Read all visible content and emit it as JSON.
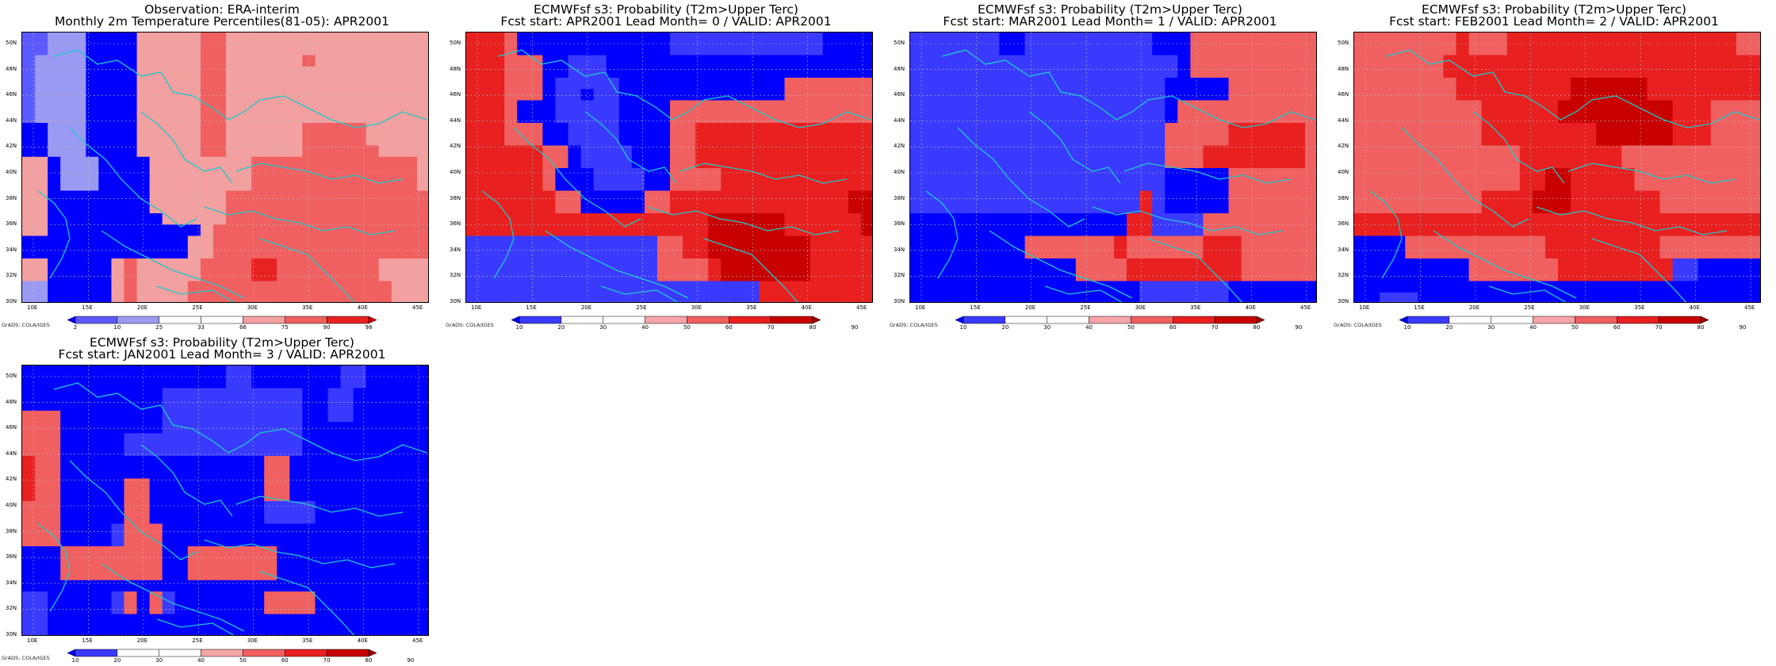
{
  "figure": {
    "grads_label": "GrADS: COLA/IGES",
    "lon_ticks": [
      "10E",
      "15E",
      "20E",
      "25E",
      "30E",
      "35E",
      "40E",
      "45E"
    ],
    "lat_ticks": [
      "50N",
      "48N",
      "46N",
      "44N",
      "42N",
      "40N",
      "38N",
      "36N",
      "34N",
      "32N",
      "30N"
    ]
  },
  "colors": {
    "percentile_scale": [
      "#0000ff",
      "#5a5aff",
      "#9a9af2",
      "#ffffff",
      "#ffffff",
      "#f2a0a0",
      "#f06060",
      "#e82222",
      "#d00000"
    ],
    "probability_scale": [
      "#0000ff",
      "#3a3aff",
      "#ffffff",
      "#ffffff",
      "#f5a5a5",
      "#f06060",
      "#e82020",
      "#c80000",
      "#a00000"
    ],
    "coast": "#20c8c8"
  },
  "panels": [
    {
      "id": "obs",
      "title_line1": "Observation: ERA-interim",
      "title_line2": "Monthly 2m Temperature Percentiles(81-05): APR2001",
      "cbar_labels": [
        "2",
        "10",
        "25",
        "33",
        "66",
        "75",
        "90",
        "98"
      ],
      "scale": "percentile",
      "grid": [
        "11222000055555665555555555555555",
        "11222000055555665555555555555555",
        "12222000055555665555556555555555",
        "12222000055555665555555555555555",
        "12222000055555665555555555555555",
        "12222000055555665555555555555555",
        "12222000055555665555555555555555",
        "12222000055555665555555555555555",
        "00222000055555665555556666655555",
        "00222000055555665555556666655555",
        "00222000055555665555556666665555",
        "55022200005555555566666666666665",
        "55022200005555555566666666666665",
        "55022200005555555566666666666665",
        "55000000005555556666666666666666",
        "55000000005555556666666666666666",
        "55000000000555556666666666666666",
        "55000000000000566666666666666666",
        "00000000000005566666666666666666",
        "00000000000005566666666666666666",
        "55000005655555666677666666665555",
        "55000005655555666677666666665555",
        "22000005655556666666666666666555",
        "22000005655556666666666666666555"
      ]
    },
    {
      "id": "lead0",
      "title_line1": "ECMWFsf s3: Probability (T2m>Upper Terc)",
      "title_line2": "Fcst start: APR2001   Lead Month= 0 / VALID: APR2001",
      "cbar_labels": [
        "10",
        "20",
        "30",
        "40",
        "50",
        "60",
        "70",
        "80",
        "90"
      ],
      "scale": "probability",
      "grid": [
        "66650000000000001111111111110000",
        "66650000000000001111111111110000",
        "66655500111000000000000000000000",
        "66655500111000000000000000000000",
        "66655501111100000000000005555555",
        "66655501101100000000000005555555",
        "66650001111100005555555555555555",
        "66650001111100005555555555555555",
        "66655500111100005566666666666666",
        "66655500111100005566666666666666",
        "66666655011110005566666666666666",
        "66666655011110005566666666666666",
        "66666650001111005555666666666666",
        "66666650001111005555666666666666",
        "66666665500000556666666666666677",
        "66666665500000556666666666666677",
        "66666666666666666667777776666667",
        "66666666666666666667777776666667",
        "11111111111111155667777777766666",
        "11111111111111155667777777766666",
        "11111111111111155556777777766666",
        "11111111111111155556777777766666",
        "11111111111111111111111666666666",
        "11111111111111111111111666666666"
      ]
    },
    {
      "id": "lead1",
      "title_line1": "ECMWFsf s3: Probability (T2m>Upper Terc)",
      "title_line2": "Fcst start: MAR2001   Lead Month= 1 / VALID: APR2001",
      "cbar_labels": [
        "10",
        "20",
        "30",
        "40",
        "50",
        "60",
        "70",
        "80",
        "90"
      ],
      "scale": "probability",
      "grid": [
        "11111110011111111110005555555555",
        "11111110011111111110005555555555",
        "11111111111111111111105555555555",
        "11111111111111111111105555555555",
        "11111111111111111111000005555555",
        "11111111111111111111000005555555",
        "11111111111111111111055555555555",
        "11111111111111111111055555555555",
        "11111111111111111111555556666665",
        "11111111111111111111555556666665",
        "11111111111111111111555666666665",
        "11111111111111111111555666666665",
        "11111111111111111111000005555555",
        "11111111111111111111000005555555",
        "11111111111111111161000005555555",
        "11111111111111111161000005555555",
        "00000000000000000661111555555555",
        "00000000000000000661111555555555",
        "00000000055555556555555666555555",
        "00000000055555556555555666555555",
        "00000000000005555666666666555555",
        "00000000000005555666666666555555",
        "00000000000000000011111110000000",
        "00000000000000000011111110000000"
      ]
    },
    {
      "id": "lead2",
      "title_line1": "ECMWFsf s3: Probability (T2m>Upper Terc)",
      "title_line2": "Fcst start: FEB2001   Lead Month= 2 / VALID: APR2001",
      "cbar_labels": [
        "10",
        "20",
        "30",
        "40",
        "50",
        "60",
        "70",
        "80",
        "90"
      ],
      "scale": "probability",
      "grid": [
        "55555555655566666666666666666655",
        "55555555655566666666666666666655",
        "55555556666666666666666666666666",
        "55555556666666666666666666666666",
        "55555555666666666777777666666666",
        "55555555666666666777777666666666",
        "55555555556666667777777776665555",
        "55555555556666667777777776665555",
        "55555555556666666667777776665555",
        "55555555556666666667777776665555",
        "55555555555556666666655555555555",
        "55555555555556666666655555555555",
        "55555555555556677666665555555555",
        "55555555555556677666665555555555",
        "55555555556666777666666655555555",
        "55555555556666777666666655555555",
        "66666666666666666666666666666666",
        "66666666666666666666666666666666",
        "00005555555555566666666655555555",
        "00005555555555566666666655555555",
        "00000000055555556666666661100000",
        "00000000055555556666666661100000",
        "00000000000000000000000000000000",
        "00111000000000000000000000000000"
      ]
    },
    {
      "id": "lead3",
      "title_line1": "ECMWFsf s3: Probability (T2m>Upper Terc)",
      "title_line2": "Fcst start: JAN2001   Lead Month= 3 / VALID: APR2001",
      "cbar_labels": [
        "10",
        "20",
        "30",
        "40",
        "50",
        "60",
        "70",
        "80",
        "90"
      ],
      "scale": "probability",
      "grid": [
        "00000000000000001100000001100000",
        "00000000000000001100000001100000",
        "00000000000111111111110011000000",
        "00000000000111111111110011000000",
        "55500000000111111111110011000000",
        "55500000000111111111110000000000",
        "55500000111111111111110000000000",
        "55500000111111111111110000000000",
        "65500000000000000005500000000000",
        "65500000000000000005500000000000",
        "65500000550000000005500000000000",
        "65500000550000000005500000000000",
        "55500000550000000001111000000000",
        "55500000550000000001111000000000",
        "55500001555000000000000000000000",
        "55500001555000000000000000000000",
        "00055555555005555555000000000000",
        "00055555555005555555000000000000",
        "00055555555005555555000000000000",
        "00000000000000000000000000000000",
        "11000001505100000005555000000000",
        "11000001505100000005555000000000",
        "11000000000000000000000000000000",
        "11000000000000000000000000000000"
      ]
    }
  ]
}
